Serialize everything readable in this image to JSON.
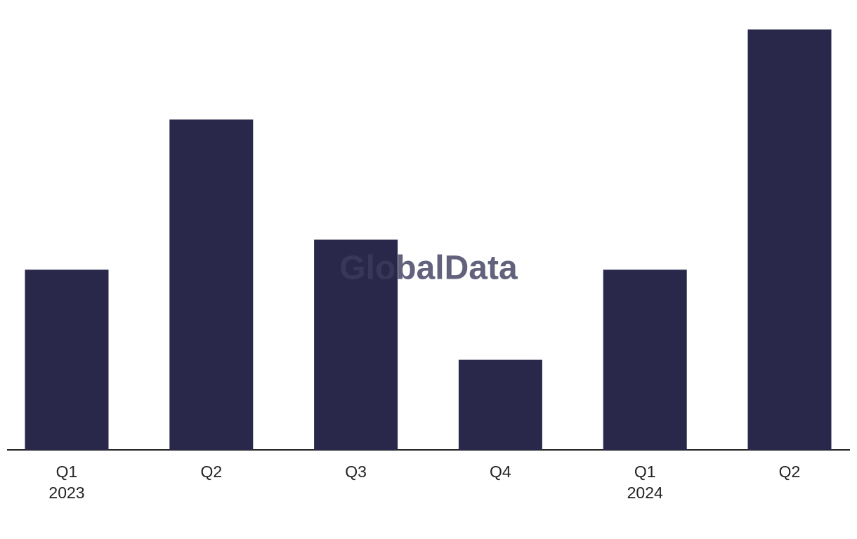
{
  "chart_data": {
    "type": "bar",
    "watermark": "GlobalData",
    "categories": [
      [
        "Q1",
        "2023"
      ],
      [
        "Q2"
      ],
      [
        "Q3"
      ],
      [
        "Q4"
      ],
      [
        "Q1",
        "2024"
      ],
      [
        "Q2"
      ]
    ],
    "values": [
      6,
      11,
      7,
      3,
      6,
      14
    ],
    "color": "#29284b",
    "ylim": [
      0,
      14
    ]
  }
}
